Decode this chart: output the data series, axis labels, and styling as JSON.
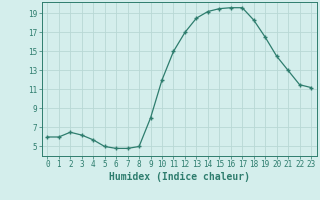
{
  "x": [
    0,
    1,
    2,
    3,
    4,
    5,
    6,
    7,
    8,
    9,
    10,
    11,
    12,
    13,
    14,
    15,
    16,
    17,
    18,
    19,
    20,
    21,
    22,
    23
  ],
  "y": [
    6.0,
    6.0,
    6.5,
    6.2,
    5.7,
    5.0,
    4.8,
    4.8,
    5.0,
    8.0,
    12.0,
    15.0,
    17.0,
    18.5,
    19.2,
    19.5,
    19.6,
    19.6,
    18.3,
    16.5,
    14.5,
    13.0,
    11.5,
    11.2
  ],
  "xlabel": "Humidex (Indice chaleur)",
  "xlim": [
    -0.5,
    23.5
  ],
  "ylim": [
    4,
    20.2
  ],
  "yticks": [
    5,
    7,
    9,
    11,
    13,
    15,
    17,
    19
  ],
  "xticks": [
    0,
    1,
    2,
    3,
    4,
    5,
    6,
    7,
    8,
    9,
    10,
    11,
    12,
    13,
    14,
    15,
    16,
    17,
    18,
    19,
    20,
    21,
    22,
    23
  ],
  "line_color": "#2e7d6e",
  "marker": "+",
  "bg_color": "#d4eeec",
  "grid_color": "#b8d8d5",
  "tick_label_color": "#2e7d6e",
  "xlabel_color": "#2e7d6e",
  "spine_color": "#2e7d6e",
  "marker_size": 3.5,
  "line_width": 0.9,
  "xlabel_fontsize": 7,
  "tick_fontsize": 5.5
}
